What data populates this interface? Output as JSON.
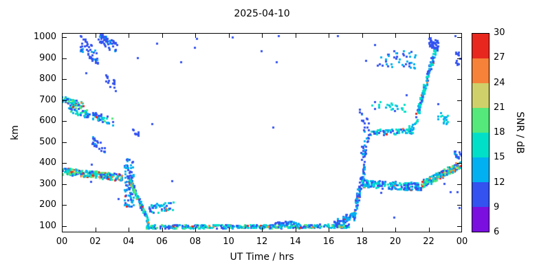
{
  "title": "2025-04-10",
  "xlabel": "UT Time / hrs",
  "ylabel": "km",
  "seed": 7,
  "colorbar": {
    "label": "SNR / dB",
    "ticks": [
      6,
      9,
      12,
      15,
      18,
      21,
      24,
      27,
      30
    ],
    "range": [
      6,
      30
    ]
  },
  "axes": {
    "x_range": [
      0,
      24
    ],
    "y_range": [
      70,
      1020
    ],
    "x_tick_values": [
      0,
      2,
      4,
      6,
      8,
      10,
      12,
      14,
      16,
      18,
      20,
      22,
      24
    ],
    "x_tick_labels": [
      "00",
      "02",
      "04",
      "06",
      "08",
      "10",
      "12",
      "14",
      "16",
      "18",
      "20",
      "22",
      "00"
    ],
    "y_tick_values": [
      100,
      200,
      300,
      400,
      500,
      600,
      700,
      800,
      900,
      1000
    ],
    "y_tick_labels": [
      "100",
      "200",
      "300",
      "400",
      "500",
      "600",
      "700",
      "800",
      "900",
      "1000"
    ]
  },
  "chart_data": {
    "type": "scatter",
    "description": "Range-time-intensity plot: meteor/ionospheric echo altitude (km) vs UT time (hrs), point color = SNR (dB)",
    "title": "2025-04-10",
    "xlabel": "UT Time / hrs",
    "ylabel": "km",
    "color_label": "SNR / dB",
    "x_range": [
      0,
      24
    ],
    "y_range": [
      70,
      1020
    ],
    "snr_range": [
      6,
      30
    ],
    "palette": [
      {
        "max": 9,
        "color": "#7a0fe0"
      },
      {
        "max": 12,
        "color": "#3352f0"
      },
      {
        "max": 15,
        "color": "#00b0f0"
      },
      {
        "max": 18,
        "color": "#00e0c8"
      },
      {
        "max": 21,
        "color": "#55e87a"
      },
      {
        "max": 24,
        "color": "#cfd06a"
      },
      {
        "max": 27,
        "color": "#f58238"
      },
      {
        "max": 30,
        "color": "#e8281e"
      }
    ],
    "clusters": [
      {
        "t": [
          0,
          3.6
        ],
        "km": [
          362,
          332
        ],
        "spread": 16,
        "n": 260,
        "snr": [
          9,
          22
        ],
        "hot": 0.16
      },
      {
        "t": [
          0,
          1.3
        ],
        "km": [
          706,
          676
        ],
        "spread": 13,
        "n": 75,
        "snr": [
          9,
          21
        ],
        "hot": 0.08
      },
      {
        "t": [
          0.4,
          3.1
        ],
        "km": [
          662,
          598
        ],
        "spread": 18,
        "n": 90,
        "snr": [
          9,
          20
        ],
        "hot": 0.05
      },
      {
        "t": [
          1.1,
          2.2
        ],
        "km": [
          970,
          905
        ],
        "spread": 38,
        "n": 45,
        "snr": [
          9,
          13
        ],
        "hot": 0
      },
      {
        "t": [
          2.2,
          3.3
        ],
        "km": [
          1000,
          945
        ],
        "spread": 28,
        "n": 55,
        "snr": [
          9,
          13
        ],
        "hot": 0
      },
      {
        "t": [
          2.6,
          3.3
        ],
        "km": [
          800,
          760
        ],
        "spread": 24,
        "n": 16,
        "snr": [
          9,
          12
        ],
        "hot": 0
      },
      {
        "t": [
          1.8,
          2.6
        ],
        "km": [
          515,
          462
        ],
        "spread": 22,
        "n": 22,
        "snr": [
          9,
          13
        ],
        "hot": 0
      },
      {
        "t": [
          3.75,
          4.35
        ],
        "km": [
          310,
          300
        ],
        "spread": 115,
        "n": 95,
        "snr": [
          9,
          15
        ],
        "hot": 0.02
      },
      {
        "t": [
          4.0,
          5.2
        ],
        "km": [
          330,
          118
        ],
        "spread": 16,
        "n": 115,
        "snr": [
          9,
          20
        ],
        "hot": 0.1
      },
      {
        "t": [
          4.2,
          4.6
        ],
        "km": [
          552,
          542
        ],
        "spread": 12,
        "n": 10,
        "snr": [
          9,
          12
        ],
        "hot": 0
      },
      {
        "t": [
          5.2,
          6.7
        ],
        "km": [
          180,
          198
        ],
        "spread": 22,
        "n": 48,
        "snr": [
          10,
          17
        ],
        "hot": 0.02
      },
      {
        "t": [
          5.0,
          17.2
        ],
        "km": [
          98,
          100
        ],
        "spread": 9,
        "n": 430,
        "snr": [
          9,
          20
        ],
        "hot": 0.04
      },
      {
        "t": [
          12.8,
          14.2
        ],
        "km": [
          116,
          114
        ],
        "spread": 9,
        "n": 40,
        "snr": [
          9,
          15
        ],
        "hot": 0
      },
      {
        "t": [
          16.3,
          17.6
        ],
        "km": [
          108,
          158
        ],
        "spread": 18,
        "n": 60,
        "snr": [
          9,
          15
        ],
        "hot": 0.02
      },
      {
        "t": [
          17.5,
          18.15
        ],
        "km": [
          150,
          385
        ],
        "spread": 38,
        "n": 85,
        "snr": [
          9,
          15
        ],
        "hot": 0.02
      },
      {
        "t": [
          17.9,
          18.4
        ],
        "km": [
          430,
          515
        ],
        "spread": 38,
        "n": 25,
        "snr": [
          9,
          13
        ],
        "hot": 0
      },
      {
        "t": [
          18.0,
          21.6
        ],
        "km": [
          302,
          288
        ],
        "spread": 18,
        "n": 165,
        "snr": [
          9,
          18
        ],
        "hot": 0.05
      },
      {
        "t": [
          17.8,
          18.45
        ],
        "km": [
          615,
          560
        ],
        "spread": 45,
        "n": 18,
        "snr": [
          9,
          13
        ],
        "hot": 0
      },
      {
        "t": [
          18.45,
          21.2
        ],
        "km": [
          545,
          556
        ],
        "spread": 13,
        "n": 70,
        "snr": [
          9,
          18
        ],
        "hot": 0.03
      },
      {
        "t": [
          18.6,
          20.6
        ],
        "km": [
          678,
          660
        ],
        "spread": 22,
        "n": 25,
        "snr": [
          11,
          18
        ],
        "hot": 0
      },
      {
        "t": [
          18.9,
          21.2
        ],
        "km": [
          900,
          888
        ],
        "spread": 42,
        "n": 42,
        "snr": [
          9,
          15
        ],
        "hot": 0
      },
      {
        "t": [
          21.2,
          22.5
        ],
        "km": [
          600,
          975
        ],
        "spread": 32,
        "n": 115,
        "snr": [
          9,
          18
        ],
        "hot": 0.04
      },
      {
        "t": [
          22.0,
          22.6
        ],
        "km": [
          978,
          958
        ],
        "spread": 24,
        "n": 40,
        "snr": [
          9,
          12
        ],
        "hot": 0
      },
      {
        "t": [
          21.6,
          24
        ],
        "km": [
          300,
          398
        ],
        "spread": 18,
        "n": 210,
        "snr": [
          9,
          22
        ],
        "hot": 0.15
      },
      {
        "t": [
          22.4,
          23.2
        ],
        "km": [
          638,
          602
        ],
        "spread": 26,
        "n": 20,
        "snr": [
          11,
          18
        ],
        "hot": 0
      },
      {
        "t": [
          23.5,
          24
        ],
        "km": [
          452,
          430
        ],
        "spread": 18,
        "n": 18,
        "snr": [
          9,
          13
        ],
        "hot": 0
      },
      {
        "t": [
          23.6,
          24
        ],
        "km": [
          905,
          895
        ],
        "spread": 32,
        "n": 14,
        "snr": [
          9,
          12
        ],
        "hot": 0
      },
      {
        "t": [
          20.8,
          21.4
        ],
        "km": [
          558,
          598
        ],
        "spread": 18,
        "n": 15,
        "snr": [
          11,
          17
        ],
        "hot": 0
      },
      {
        "t": [
          0,
          24
        ],
        "km": [
          550,
          550
        ],
        "spread": 460,
        "n": 30,
        "snr": [
          9,
          12
        ],
        "hot": 0
      }
    ]
  }
}
